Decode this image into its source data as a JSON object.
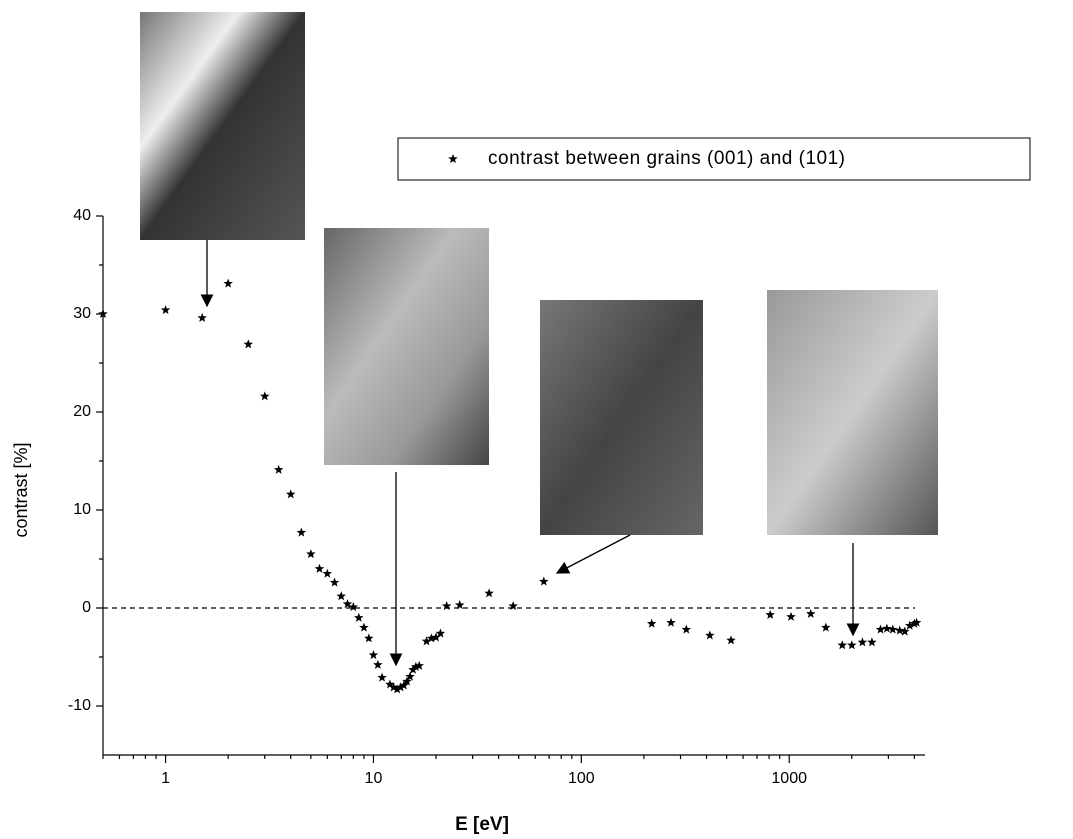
{
  "chart_data": {
    "type": "scatter",
    "x_label": "E [eV]",
    "y_label": "contrast [%]",
    "log_x": true,
    "legend": "upper right",
    "xlim": [
      0.5,
      4500
    ],
    "ylim": [
      -15,
      40
    ],
    "xticks": [
      1,
      10,
      100,
      1000
    ],
    "yticks": [
      -10,
      0,
      10,
      20,
      30,
      40
    ],
    "series": [
      {
        "name": "contrast between grains (001) and (101)",
        "color": "#000000",
        "x": [
          0.5,
          1.0,
          1.5,
          2.0,
          2.5,
          3.0,
          3.5,
          4.0,
          4.5,
          5.0,
          5.5,
          6.0,
          6.5,
          7.0,
          7.5,
          8.0,
          8.5,
          9.0,
          9.5,
          10,
          10.5,
          11,
          12,
          12.5,
          13,
          13.5,
          14,
          14.5,
          15,
          15.5,
          16,
          16.6,
          18,
          19,
          20,
          21,
          22.5,
          26,
          36,
          47,
          66,
          218,
          270,
          320,
          415,
          525,
          810,
          1020,
          1270,
          1500,
          1800,
          2000,
          2250,
          2500,
          2750,
          2950,
          3150,
          3400,
          3600,
          3800,
          4000,
          4100
        ],
        "values": [
          30,
          30.4,
          29.6,
          33.1,
          26.9,
          21.6,
          14.1,
          11.6,
          7.7,
          5.5,
          4.0,
          3.5,
          2.6,
          1.2,
          0.4,
          0.1,
          -1.0,
          -2.0,
          -3.1,
          -4.8,
          -5.8,
          -7.1,
          -7.8,
          -8.1,
          -8.3,
          -8.1,
          -7.9,
          -7.5,
          -7.0,
          -6.3,
          -6.0,
          -5.9,
          -3.4,
          -3.1,
          -3.0,
          -2.6,
          0.2,
          0.3,
          1.5,
          0.2,
          2.7,
          -1.6,
          -1.5,
          -2.2,
          -2.8,
          -3.3,
          -0.7,
          -0.9,
          -0.6,
          -2.0,
          -3.8,
          -3.8,
          -3.5,
          -3.5,
          -2.2,
          -2.1,
          -2.2,
          -2.3,
          -2.4,
          -1.8,
          -1.6,
          -1.5
        ]
      }
    ]
  }
}
